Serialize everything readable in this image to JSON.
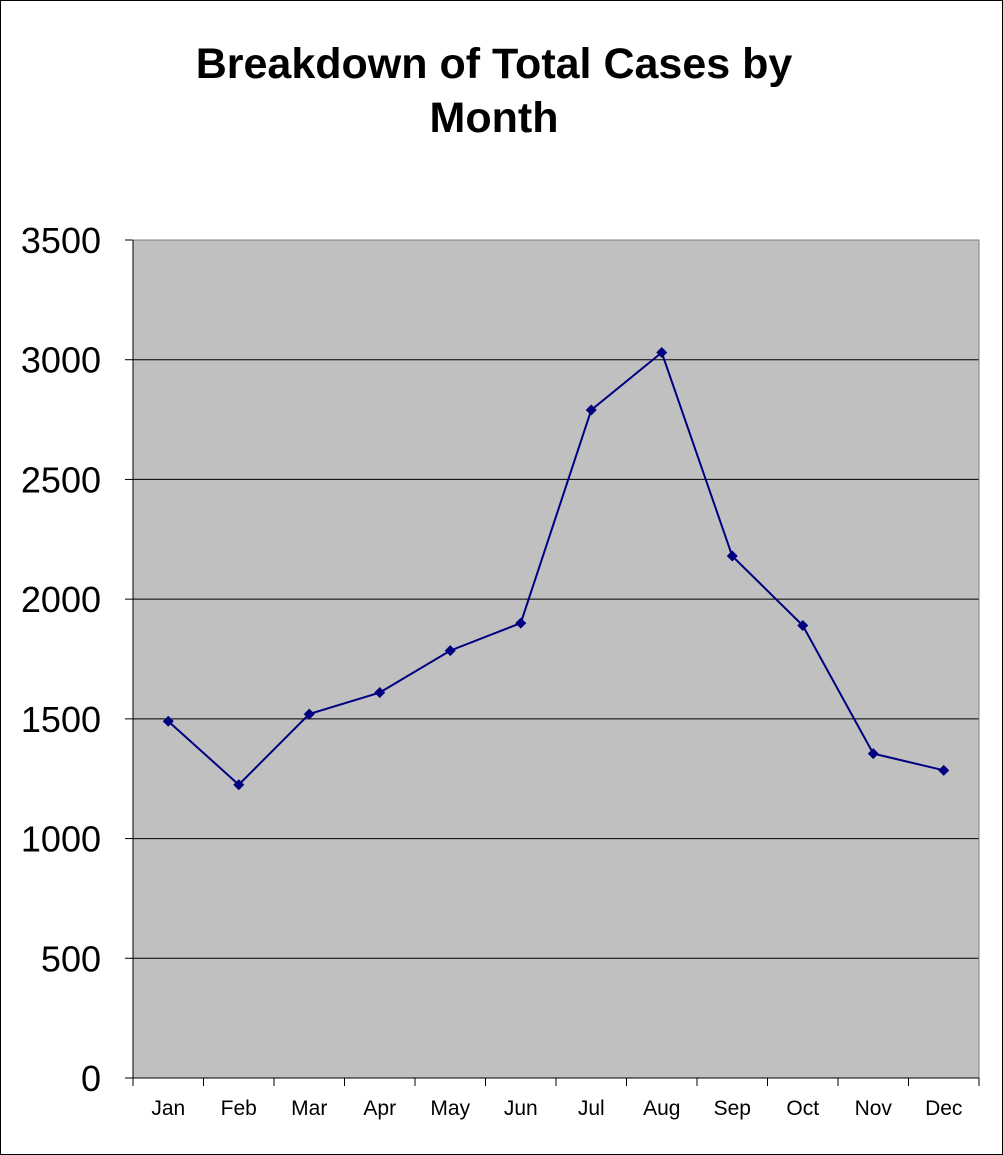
{
  "chart_data": {
    "type": "line",
    "title_line1": "Breakdown of Total Cases by",
    "title_line2": "Month",
    "categories": [
      "Jan",
      "Feb",
      "Mar",
      "Apr",
      "May",
      "Jun",
      "Jul",
      "Aug",
      "Sep",
      "Oct",
      "Nov",
      "Dec"
    ],
    "series": [
      {
        "values": [
          1490,
          1225,
          1520,
          1610,
          1785,
          1900,
          2790,
          3030,
          2180,
          1890,
          1355,
          1285
        ]
      }
    ],
    "ylim": [
      0,
      3500
    ],
    "yticks": [
      "0",
      "500",
      "1000",
      "1500",
      "2000",
      "2500",
      "3000",
      "3500"
    ],
    "grid": true,
    "legend": "none",
    "colors": {
      "plot_background": "#c0c0c0",
      "series_line": "#000080",
      "gridline": "#000000"
    }
  }
}
